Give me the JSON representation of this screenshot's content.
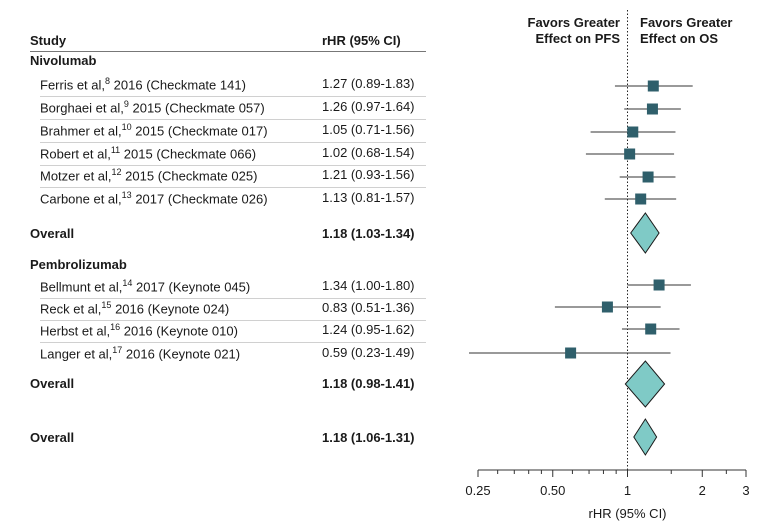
{
  "header": {
    "study_label": "Study",
    "hr_label": "rHR (95% CI)",
    "favors_left_line1": "Favors Greater",
    "favors_left_line2": "Effect on PFS",
    "favors_right_line1": "Favors Greater",
    "favors_right_line2": "Effect on OS"
  },
  "groups": [
    {
      "name": "Nivolumab",
      "studies": [
        {
          "author": "Ferris et al,",
          "ref": "8",
          "detail": "2016 (Checkmate 141)",
          "hr_text": "1.27 (0.89-1.83)"
        },
        {
          "author": "Borghaei et al,",
          "ref": "9",
          "detail": "2015 (Checkmate 057)",
          "hr_text": "1.26 (0.97-1.64)"
        },
        {
          "author": "Brahmer et al,",
          "ref": "10",
          "detail": "2015 (Checkmate 017)",
          "hr_text": "1.05 (0.71-1.56)"
        },
        {
          "author": "Robert et al,",
          "ref": "11",
          "detail": "2015 (Checkmate 066)",
          "hr_text": "1.02 (0.68-1.54)"
        },
        {
          "author": "Motzer et al,",
          "ref": "12",
          "detail": "2015 (Checkmate 025)",
          "hr_text": "1.21 (0.93-1.56)"
        },
        {
          "author": "Carbone et al,",
          "ref": "13",
          "detail": "2017 (Checkmate 026)",
          "hr_text": "1.13 (0.81-1.57)"
        }
      ],
      "overall_label": "Overall",
      "overall_hr_text": "1.18 (1.03-1.34)"
    },
    {
      "name": "Pembrolizumab",
      "studies": [
        {
          "author": "Bellmunt et al,",
          "ref": "14",
          "detail": "2017 (Keynote 045)",
          "hr_text": "1.34 (1.00-1.80)"
        },
        {
          "author": "Reck et al,",
          "ref": "15",
          "detail": "2016 (Keynote 024)",
          "hr_text": "0.83 (0.51-1.36)"
        },
        {
          "author": "Herbst et al,",
          "ref": "16",
          "detail": "2016 (Keynote 010)",
          "hr_text": "1.24 (0.95-1.62)"
        },
        {
          "author": "Langer et al,",
          "ref": "17",
          "detail": "2016 (Keynote 021)",
          "hr_text": "0.59 (0.23-1.49)"
        }
      ],
      "overall_label": "Overall",
      "overall_hr_text": "1.18 (0.98-1.41)"
    }
  ],
  "total": {
    "label": "Overall",
    "hr_text": "1.18 (1.06-1.31)"
  },
  "chart_data": {
    "type": "forest",
    "xlabel": "rHR (95% CI)",
    "xscale": "log",
    "xlim": [
      0.25,
      3
    ],
    "xticks": [
      0.25,
      0.5,
      1,
      2,
      3
    ],
    "xtick_labels": [
      "0.25",
      "0.50",
      "1",
      "2",
      "3"
    ],
    "reference_line": 1,
    "colors": {
      "marker": "#2f5f6b",
      "diamond_fill": "#7fcac6",
      "diamond_stroke": "#1a1a1a",
      "ci_line": "#333333"
    },
    "studies": [
      {
        "study": "Ferris et al",
        "group": "Nivolumab",
        "hr": 1.27,
        "lo": 0.89,
        "hi": 1.83
      },
      {
        "study": "Borghaei et al",
        "group": "Nivolumab",
        "hr": 1.26,
        "lo": 0.97,
        "hi": 1.64
      },
      {
        "study": "Brahmer et al",
        "group": "Nivolumab",
        "hr": 1.05,
        "lo": 0.71,
        "hi": 1.56
      },
      {
        "study": "Robert et al",
        "group": "Nivolumab",
        "hr": 1.02,
        "lo": 0.68,
        "hi": 1.54
      },
      {
        "study": "Motzer et al",
        "group": "Nivolumab",
        "hr": 1.21,
        "lo": 0.93,
        "hi": 1.56
      },
      {
        "study": "Carbone et al",
        "group": "Nivolumab",
        "hr": 1.13,
        "lo": 0.81,
        "hi": 1.57
      },
      {
        "study": "Bellmunt et al",
        "group": "Pembrolizumab",
        "hr": 1.34,
        "lo": 1.0,
        "hi": 1.8
      },
      {
        "study": "Reck et al",
        "group": "Pembrolizumab",
        "hr": 0.83,
        "lo": 0.51,
        "hi": 1.36
      },
      {
        "study": "Herbst et al",
        "group": "Pembrolizumab",
        "hr": 1.24,
        "lo": 0.95,
        "hi": 1.62
      },
      {
        "study": "Langer et al",
        "group": "Pembrolizumab",
        "hr": 0.59,
        "lo": 0.23,
        "hi": 1.49
      }
    ],
    "overall": [
      {
        "label": "Nivolumab Overall",
        "hr": 1.18,
        "lo": 1.03,
        "hi": 1.34
      },
      {
        "label": "Pembrolizumab Overall",
        "hr": 1.18,
        "lo": 0.98,
        "hi": 1.41
      },
      {
        "label": "Overall",
        "hr": 1.18,
        "lo": 1.06,
        "hi": 1.31
      }
    ]
  }
}
